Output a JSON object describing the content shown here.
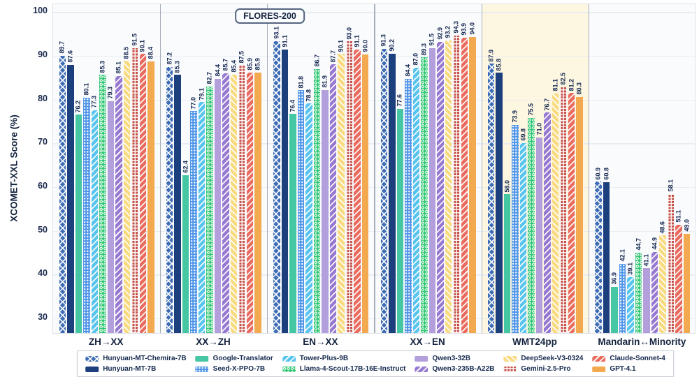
{
  "chart_data": {
    "type": "bar",
    "title": "FLORES-200",
    "ylabel": "XCOMET-XXL Score (%)",
    "yticks": [
      30,
      40,
      50,
      60,
      70,
      80,
      90,
      100
    ],
    "ylim": [
      26.3,
      101.8
    ],
    "grid": "horizontal",
    "legend_position": "bottom",
    "categories": [
      "ZH→XX",
      "XX→ZH",
      "EN→XX",
      "XX→EN",
      "WMT24pp",
      "Mandarin↔Minority"
    ],
    "highlighted_category": "WMT24pp",
    "series": [
      {
        "name": "Hunyuan-MT-Chemira-7B",
        "color": "#3e6db5",
        "pattern": "crosshatch",
        "values": [
          89.7,
          87.2,
          93.1,
          91.3,
          87.9,
          60.9
        ]
      },
      {
        "name": "Hunyuan-MT-7B",
        "color": "#1c3f7d",
        "pattern": "solid",
        "values": [
          87.6,
          85.3,
          91.1,
          90.2,
          85.8,
          60.8
        ]
      },
      {
        "name": "Google-Translator",
        "color": "#46c7a4",
        "pattern": "solid",
        "values": [
          76.2,
          62.4,
          76.4,
          77.6,
          58.0,
          36.9
        ]
      },
      {
        "name": "Seed-X-PPO-7B",
        "color": "#4e94e8",
        "pattern": "dots",
        "values": [
          80.1,
          77.0,
          81.8,
          84.4,
          73.9,
          42.1
        ]
      },
      {
        "name": "Tower-Plus-9B",
        "color": "#57c4ee",
        "pattern": "diag-fwd",
        "values": [
          77.3,
          79.1,
          78.8,
          87.0,
          69.8,
          39.1
        ]
      },
      {
        "name": "Llama-4-Scout-17B-16E-Instruct",
        "color": "#2ac56e",
        "pattern": "rings",
        "values": [
          85.3,
          82.7,
          86.7,
          89.3,
          75.5,
          44.7
        ]
      },
      {
        "name": "Qwen3-32B",
        "color": "#b29fdc",
        "pattern": "solid",
        "values": [
          79.3,
          84.4,
          81.9,
          91.5,
          71.0,
          41.1
        ]
      },
      {
        "name": "Qwen3-235B-A22B",
        "color": "#9678d1",
        "pattern": "diag-fwd",
        "values": [
          85.1,
          85.7,
          87.7,
          92.9,
          76.7,
          44.9
        ]
      },
      {
        "name": "DeepSeek-V3-0324",
        "color": "#f9da7e",
        "pattern": "diag-back",
        "values": [
          88.5,
          85.4,
          90.1,
          93.2,
          81.1,
          48.6
        ]
      },
      {
        "name": "Gemini-2.5-Pro",
        "color": "#c5534b",
        "pattern": "grid",
        "values": [
          91.5,
          87.5,
          93.0,
          94.3,
          82.5,
          58.1
        ]
      },
      {
        "name": "Claude-Sonnet-4",
        "color": "#ea6a5d",
        "pattern": "diag-fwd",
        "values": [
          90.1,
          85.9,
          91.1,
          93.9,
          81.2,
          51.1
        ]
      },
      {
        "name": "GPT-4.1",
        "color": "#f3a950",
        "pattern": "solid",
        "values": [
          88.4,
          85.9,
          90.0,
          94.0,
          80.3,
          49.0
        ]
      }
    ],
    "theme": {
      "text_color": "#14233f",
      "plot_background": "#fafbfd",
      "gridline_color": "#e9edf3",
      "separator_color": "#a7aeb9",
      "highlight_color": "#fdf6e1"
    }
  }
}
